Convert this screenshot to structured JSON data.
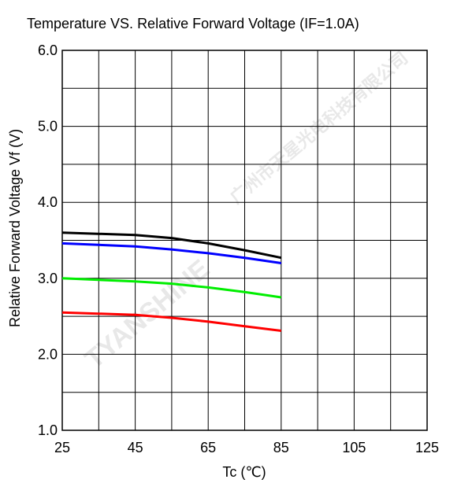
{
  "chart_data": {
    "type": "line",
    "title": "Temperature VS. Relative Forward  Voltage (IF=1.0A)",
    "xlabel": "Tc (℃)",
    "ylabel": "Relative Forward  Voltage  Vf  (V)",
    "xlim": [
      25,
      125
    ],
    "ylim": [
      1.0,
      6.0
    ],
    "x_ticks": [
      "25",
      "45",
      "65",
      "85",
      "105",
      "125"
    ],
    "y_ticks": [
      "1.0",
      "2.0",
      "3.0",
      "4.0",
      "5.0",
      "6.0"
    ],
    "grid": true,
    "series": [
      {
        "color": "#000000",
        "x": [
          25,
          45,
          55,
          65,
          75,
          85
        ],
        "y": [
          3.6,
          3.57,
          3.53,
          3.46,
          3.37,
          3.27
        ]
      },
      {
        "color": "#0000ff",
        "x": [
          25,
          45,
          55,
          65,
          75,
          85
        ],
        "y": [
          3.46,
          3.42,
          3.38,
          3.33,
          3.27,
          3.2
        ]
      },
      {
        "color": "#00ee00",
        "x": [
          25,
          45,
          55,
          65,
          75,
          85
        ],
        "y": [
          3.0,
          2.96,
          2.93,
          2.88,
          2.82,
          2.75
        ]
      },
      {
        "color": "#ff0000",
        "x": [
          25,
          45,
          55,
          65,
          75,
          85
        ],
        "y": [
          2.55,
          2.52,
          2.48,
          2.43,
          2.37,
          2.31
        ]
      }
    ]
  },
  "watermark": {
    "brand": "TYANSHINE",
    "chinese": "广州市天星光电科技有限公司"
  }
}
